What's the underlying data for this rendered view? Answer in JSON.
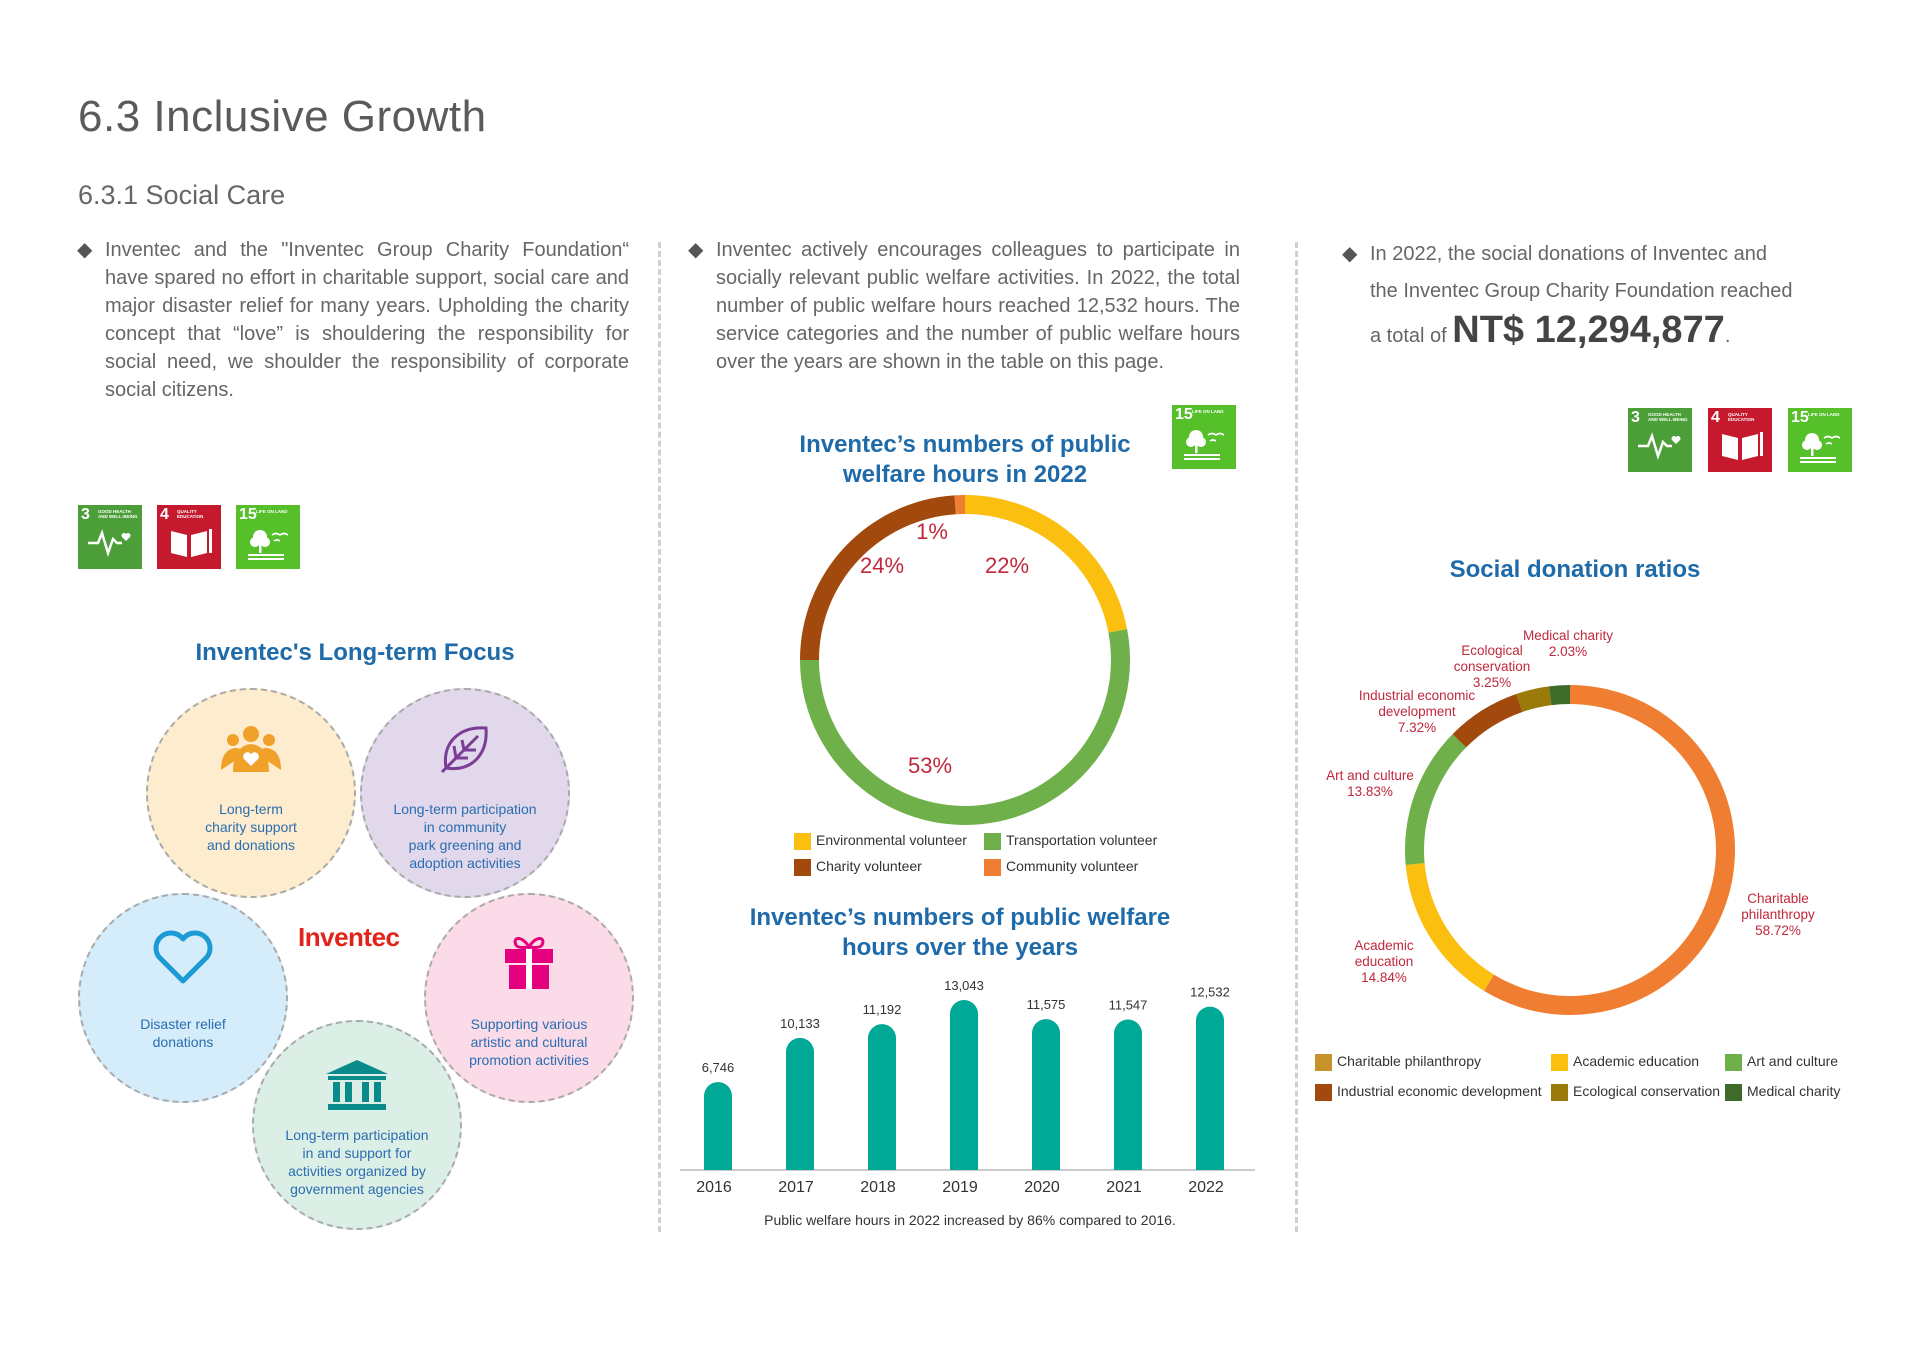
{
  "header": {
    "title": "6.3 Inclusive Growth",
    "subtitle": "6.3.1 Social Care"
  },
  "col1": {
    "bullet": "◆",
    "paragraph": "Inventec and the \"Inventec Group Charity Foundation“ have spared no effort in charitable support, social care and major disaster relief for many years. Upholding the charity concept that “love” is shouldering the responsibility for social need, we shoulder the responsibility of corporate social citizens.",
    "focus_title": "Inventec's Long-term Focus",
    "logo": "Inventec",
    "circles": [
      {
        "icon": "people-heart-icon",
        "text": [
          "Long-term",
          "charity support",
          "and donations"
        ],
        "bg": "#fdeccd"
      },
      {
        "icon": "leaf-icon",
        "text": [
          "Long-term participation",
          "in community",
          "park greening and",
          "adoption activities"
        ],
        "bg": "#e1d8ec"
      },
      {
        "icon": "heart-icon",
        "text": [
          "Disaster relief",
          "donations"
        ],
        "bg": "#d5ecfa"
      },
      {
        "icon": "gift-icon",
        "text": [
          "Supporting various",
          "artistic and cultural",
          "promotion activities"
        ],
        "bg": "#fbdbe8"
      },
      {
        "icon": "government-building-icon",
        "text": [
          "Long-term participation",
          "in and support for",
          "activities organized by",
          "government agencies"
        ],
        "bg": "#dcefe6"
      }
    ]
  },
  "sdg": {
    "g3": {
      "num": "3",
      "label": "GOOD HEALTH AND WELL-BEING",
      "color": "#4c9f38"
    },
    "g4": {
      "num": "4",
      "label": "QUALITY EDUCATION",
      "color": "#c5192d"
    },
    "g15": {
      "num": "15",
      "label": "LIFE ON LAND",
      "color": "#56c02b"
    }
  },
  "col2": {
    "bullet": "◆",
    "paragraph": "Inventec actively encourages colleagues to participate in socially relevant public welfare activities. In 2022, the total number of public welfare hours reached 12,532 hours. The service categories and the number of public welfare hours over the years are shown in the table on this page.",
    "donut_title": [
      "Inventec’s numbers of public",
      "welfare hours in 2022"
    ],
    "bar_title": [
      "Inventec’s numbers of public welfare",
      "hours over the years"
    ],
    "bar_note": "Public welfare hours in 2022 increased by 86% compared to 2016."
  },
  "col3": {
    "bullet": "◆",
    "line1": "In 2022, the social donations of Inventec and",
    "line2": "the Inventec Group Charity Foundation reached",
    "line3_prefix": "a total of",
    "amount": "NT$ 12,294,877",
    "line3_suffix": ".",
    "donut_title": "Social donation ratios"
  },
  "chart_data": [
    {
      "type": "pie",
      "title": "Inventec’s numbers of public welfare hours in 2022",
      "categories": [
        "Environmental volunteer",
        "Transportation volunteer",
        "Charity volunteer",
        "Community volunteer"
      ],
      "values": [
        22,
        53,
        24,
        1
      ],
      "labels": [
        "22%",
        "53%",
        "24%",
        "1%"
      ],
      "colors": [
        "#fbbf0f",
        "#6fb04a",
        "#a2490d",
        "#ef7e32"
      ],
      "legend": "bottom"
    },
    {
      "type": "bar",
      "title": "Inventec’s numbers of public welfare hours over the years",
      "categories": [
        "2016",
        "2017",
        "2018",
        "2019",
        "2020",
        "2021",
        "2022"
      ],
      "values": [
        6746,
        10133,
        11192,
        13043,
        11575,
        11547,
        12532
      ],
      "labels": [
        "6,746",
        "10,133",
        "11,192",
        "13,043",
        "11,575",
        "11,547",
        "12,532"
      ],
      "color": "#00a896"
    },
    {
      "type": "pie",
      "title": "Social donation ratios",
      "categories": [
        "Charitable philanthropy",
        "Academic education",
        "Art and culture",
        "Industrial economic development",
        "Ecological conservation",
        "Medical charity"
      ],
      "values": [
        58.72,
        14.84,
        13.83,
        7.32,
        3.25,
        2.03
      ],
      "slice_labels": [
        [
          "Charitable",
          "philanthropy",
          "58.72%"
        ],
        [
          "Academic",
          "education",
          "14.84%"
        ],
        [
          "Art and culture",
          "13.83%"
        ],
        [
          "Industrial economic",
          "development",
          "7.32%"
        ],
        [
          "Ecological",
          "conservation",
          "3.25%"
        ],
        [
          "Medical charity",
          "2.03%"
        ]
      ],
      "colors": [
        "#ef7e32",
        "#fbbf0f",
        "#6fb04a",
        "#a2490d",
        "#9a7b0a",
        "#3f6b2a"
      ],
      "legend_colors": [
        "#c8922a",
        "#fbbf0f",
        "#6fb04a",
        "#a2490d",
        "#9a7b0a",
        "#3f6b2a"
      ],
      "legend": "bottom"
    }
  ]
}
